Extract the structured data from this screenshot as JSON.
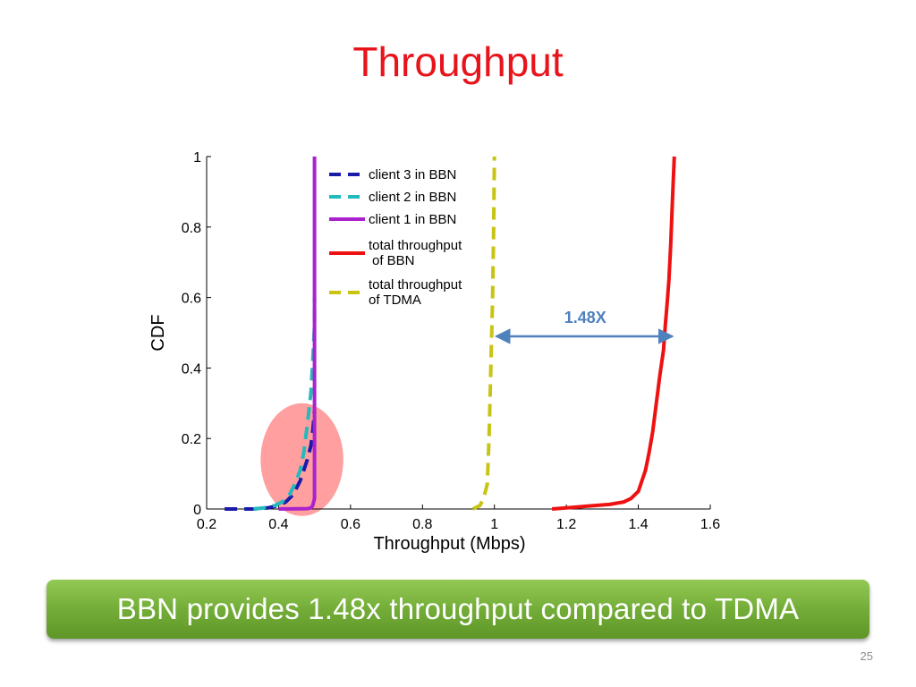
{
  "slide": {
    "title": "Throughput",
    "banner_text": "BBN provides 1.48x throughput compared to TDMA",
    "page_number": "25"
  },
  "chart_data": {
    "type": "line",
    "title": "",
    "xlabel": "Throughput (Mbps)",
    "ylabel": "CDF",
    "xlim": [
      0.2,
      1.6
    ],
    "ylim": [
      0,
      1
    ],
    "x_ticks": [
      "0.2",
      "0.4",
      "0.6",
      "0.8",
      "1",
      "1.2",
      "1.4",
      "1.6"
    ],
    "y_ticks": [
      "0",
      "0.2",
      "0.4",
      "0.6",
      "0.8",
      "1"
    ],
    "grid": false,
    "legend_position": "top-left",
    "series": [
      {
        "name": "client 3 in BBN",
        "color": "#1a1aaa",
        "style": "dashed",
        "points": [
          [
            0.25,
            0
          ],
          [
            0.33,
            0
          ],
          [
            0.37,
            0.003
          ],
          [
            0.4,
            0.01
          ],
          [
            0.42,
            0.02
          ],
          [
            0.44,
            0.04
          ],
          [
            0.46,
            0.08
          ],
          [
            0.47,
            0.11
          ],
          [
            0.48,
            0.14
          ],
          [
            0.49,
            0.18
          ],
          [
            0.495,
            0.22
          ],
          [
            0.5,
            0.28
          ]
        ]
      },
      {
        "name": "client 2 in BBN",
        "color": "#22bbbb",
        "style": "dashed",
        "points": [
          [
            0.33,
            0
          ],
          [
            0.36,
            0.003
          ],
          [
            0.39,
            0.01
          ],
          [
            0.41,
            0.02
          ],
          [
            0.43,
            0.04
          ],
          [
            0.445,
            0.07
          ],
          [
            0.46,
            0.11
          ],
          [
            0.47,
            0.16
          ],
          [
            0.48,
            0.24
          ],
          [
            0.49,
            0.33
          ],
          [
            0.495,
            0.42
          ],
          [
            0.5,
            0.52
          ],
          [
            0.5,
            0.6
          ]
        ]
      },
      {
        "name": "client 1 in BBN",
        "color": "#aa22cc",
        "style": "solid",
        "points": [
          [
            0.4,
            0
          ],
          [
            0.48,
            0.001
          ],
          [
            0.49,
            0.003
          ],
          [
            0.495,
            0.01
          ],
          [
            0.5,
            0.03
          ],
          [
            0.5,
            1.0
          ]
        ]
      },
      {
        "name": "total throughput of BBN",
        "color": "#ee1111",
        "style": "solid",
        "points": [
          [
            1.16,
            0
          ],
          [
            1.2,
            0.003
          ],
          [
            1.26,
            0.008
          ],
          [
            1.32,
            0.013
          ],
          [
            1.36,
            0.02
          ],
          [
            1.38,
            0.03
          ],
          [
            1.4,
            0.05
          ],
          [
            1.41,
            0.08
          ],
          [
            1.42,
            0.11
          ],
          [
            1.43,
            0.16
          ],
          [
            1.44,
            0.22
          ],
          [
            1.45,
            0.3
          ],
          [
            1.46,
            0.38
          ],
          [
            1.47,
            0.45
          ],
          [
            1.475,
            0.52
          ],
          [
            1.48,
            0.58
          ],
          [
            1.485,
            0.65
          ],
          [
            1.49,
            0.75
          ],
          [
            1.495,
            0.88
          ],
          [
            1.5,
            1.0
          ]
        ]
      },
      {
        "name": "total throughput of TDMA",
        "color": "#c8c414",
        "style": "dashed",
        "points": [
          [
            0.94,
            0
          ],
          [
            0.96,
            0.01
          ],
          [
            0.97,
            0.03
          ],
          [
            0.98,
            0.07
          ],
          [
            0.985,
            0.2
          ],
          [
            0.99,
            0.4
          ],
          [
            0.995,
            0.6
          ],
          [
            0.998,
            0.8
          ],
          [
            1.0,
            1.0
          ]
        ]
      }
    ],
    "annotations": [
      {
        "label": "1.48X",
        "type": "double-arrow",
        "x_from": 1.0,
        "x_to": 1.48,
        "y": 0.49,
        "color": "#4f81bd"
      },
      {
        "type": "highlight-ellipse",
        "cx": 0.465,
        "cy": 0.14,
        "rx": 0.115,
        "ry": 0.16,
        "color": "#ff7f7f"
      }
    ]
  }
}
